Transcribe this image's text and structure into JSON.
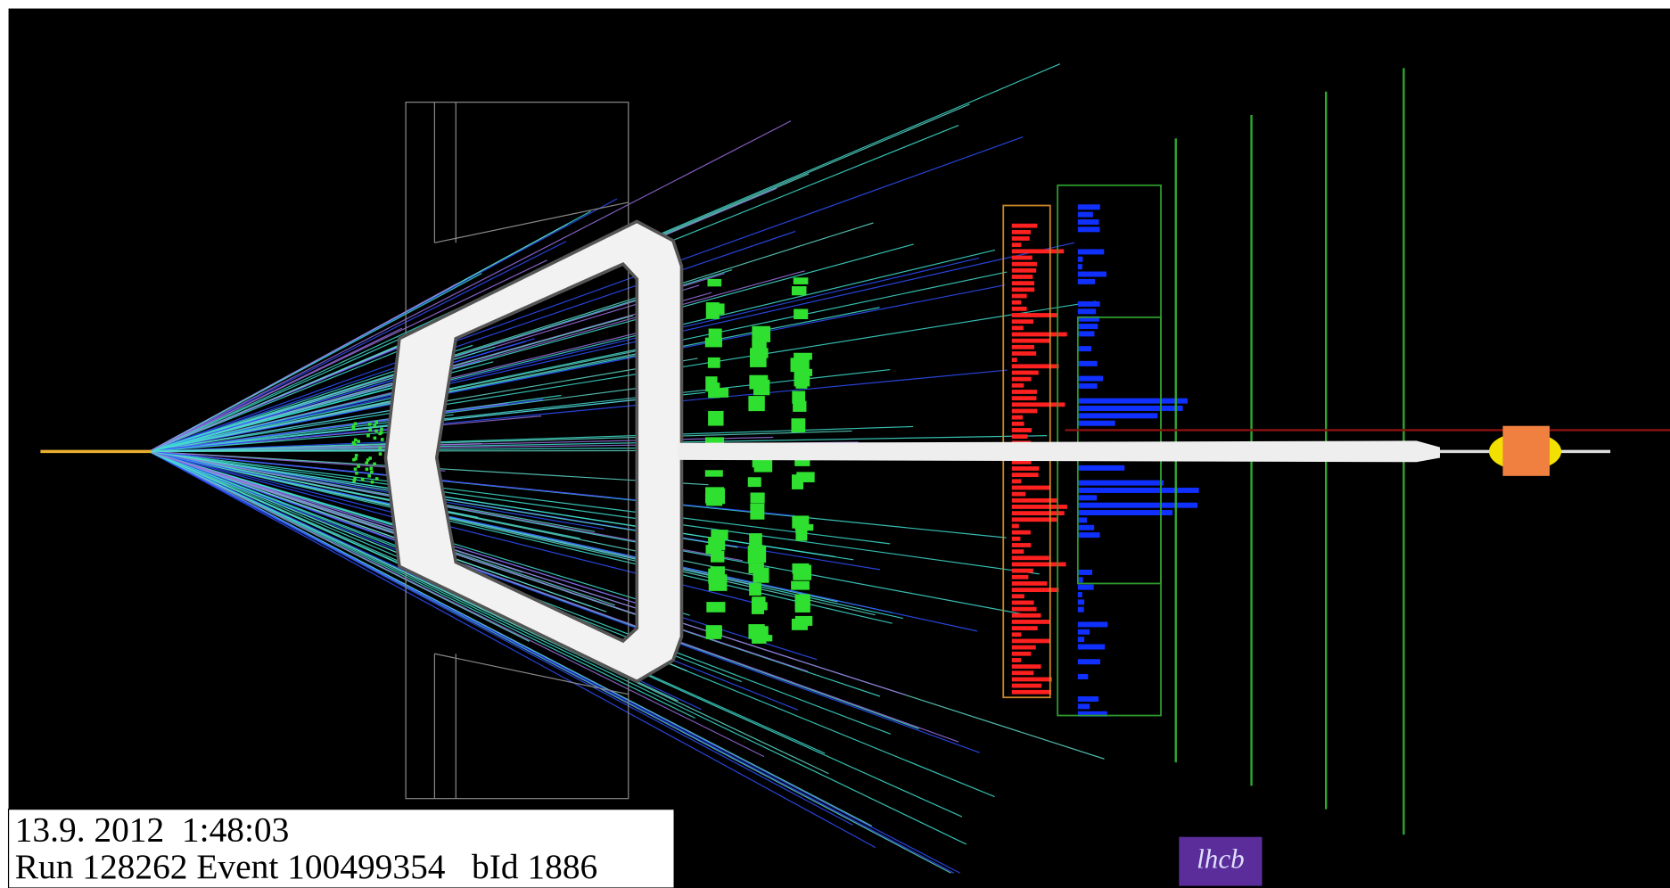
{
  "info": {
    "timestamp": "13.9. 2012  1:48:03",
    "run_line": "Run 128262 Event 100499354   bId 1886"
  },
  "logo": "lhcb"
}
